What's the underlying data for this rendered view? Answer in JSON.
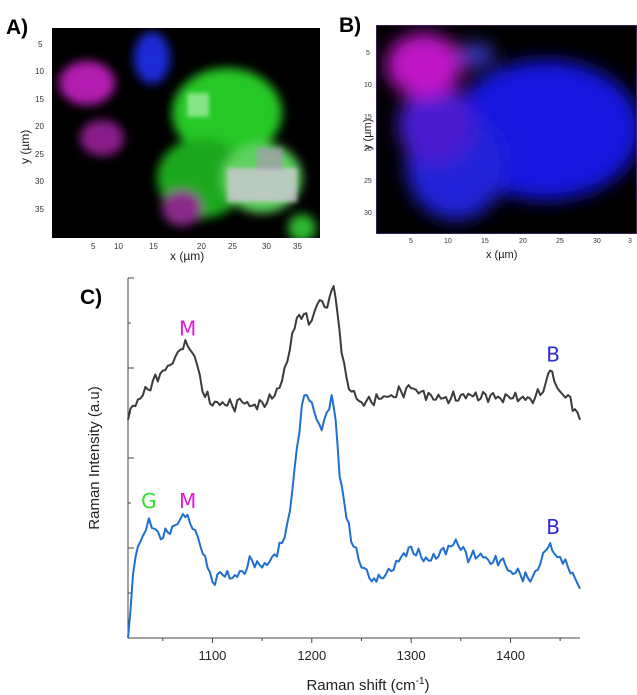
{
  "panels": {
    "a": {
      "label": "A)",
      "xlabel": "x (µm)",
      "ylabel": "y (µm)",
      "xticks": [
        "5",
        "10",
        "15",
        "20",
        "25",
        "30",
        "35"
      ],
      "yticks": [
        "5",
        "10",
        "15",
        "20",
        "25",
        "30",
        "35"
      ]
    },
    "b": {
      "label": "B)",
      "xlabel": "x (µm)",
      "ylabel": "y (µm)",
      "xticks": [
        "5",
        "10",
        "15",
        "20",
        "25",
        "30",
        "3"
      ],
      "yticks": [
        "5",
        "10",
        "15",
        "20",
        "25",
        "30"
      ]
    },
    "c": {
      "label": "C)"
    }
  },
  "chart_data": {
    "type": "line",
    "xlabel": "Raman shift (cm",
    "xlabel_sup": "-1",
    "xlabel_suffix": ")",
    "ylabel": "Raman Intensity (a.u)",
    "xlim": [
      1015,
      1470
    ],
    "xticks": [
      1100,
      1200,
      1300,
      1400
    ],
    "ylim": [
      0,
      10
    ],
    "grid": false,
    "series": [
      {
        "color": "#3b3b3b",
        "x": [
          1015,
          1020,
          1030,
          1040,
          1050,
          1060,
          1068,
          1075,
          1082,
          1090,
          1100,
          1110,
          1120,
          1130,
          1140,
          1150,
          1160,
          1170,
          1178,
          1185,
          1192,
          1197,
          1203,
          1208,
          1213,
          1218,
          1222,
          1226,
          1230,
          1235,
          1240,
          1245,
          1250,
          1260,
          1270,
          1280,
          1290,
          1300,
          1310,
          1320,
          1330,
          1340,
          1350,
          1360,
          1370,
          1380,
          1390,
          1400,
          1410,
          1420,
          1430,
          1436,
          1440,
          1444,
          1450,
          1458,
          1465,
          1470
        ],
        "y": [
          6.2,
          6.6,
          6.9,
          7.3,
          7.6,
          7.8,
          8.2,
          8.3,
          8.0,
          7.0,
          6.6,
          6.7,
          6.6,
          6.7,
          6.6,
          6.7,
          6.8,
          7.3,
          8.2,
          9.1,
          9.2,
          8.9,
          9.3,
          9.6,
          9.4,
          9.7,
          10.0,
          9.2,
          8.1,
          7.4,
          7.0,
          6.8,
          6.7,
          6.7,
          6.8,
          6.9,
          7.0,
          7.1,
          7.0,
          6.9,
          6.8,
          6.8,
          6.9,
          6.9,
          6.8,
          6.9,
          6.8,
          6.8,
          6.8,
          6.8,
          6.9,
          7.3,
          7.6,
          7.3,
          7.0,
          6.9,
          6.5,
          6.2
        ]
      },
      {
        "color": "#1f6fd1",
        "x": [
          1015,
          1020,
          1025,
          1030,
          1036,
          1042,
          1048,
          1055,
          1062,
          1068,
          1075,
          1080,
          1088,
          1095,
          1100,
          1110,
          1120,
          1130,
          1140,
          1150,
          1160,
          1170,
          1178,
          1185,
          1190,
          1195,
          1200,
          1205,
          1210,
          1215,
          1220,
          1224,
          1228,
          1235,
          1242,
          1250,
          1258,
          1265,
          1272,
          1280,
          1290,
          1300,
          1310,
          1320,
          1330,
          1340,
          1345,
          1350,
          1360,
          1370,
          1380,
          1390,
          1400,
          1410,
          1420,
          1430,
          1436,
          1440,
          1444,
          1450,
          1458,
          1465,
          1470
        ],
        "y": [
          0.0,
          1.8,
          2.6,
          2.9,
          3.4,
          3.1,
          2.8,
          3.0,
          3.2,
          3.4,
          3.5,
          3.1,
          2.6,
          2.0,
          1.6,
          1.8,
          1.7,
          1.9,
          2.2,
          2.0,
          2.3,
          2.7,
          3.6,
          5.4,
          6.6,
          6.9,
          6.7,
          6.2,
          5.9,
          6.4,
          6.9,
          6.2,
          4.6,
          3.4,
          2.6,
          2.0,
          1.7,
          1.6,
          1.7,
          1.9,
          2.3,
          2.6,
          2.3,
          2.2,
          2.5,
          2.6,
          2.8,
          2.5,
          2.3,
          2.4,
          2.1,
          2.2,
          1.9,
          1.8,
          1.6,
          2.1,
          2.5,
          2.7,
          2.4,
          2.3,
          2.0,
          1.7,
          1.4
        ]
      }
    ],
    "annotations": [
      {
        "text": "M",
        "color": "#e11bd6",
        "x": 1075,
        "y": 8.6
      },
      {
        "text": "B",
        "color": "#2a2ad6",
        "x": 1443,
        "y": 7.85
      },
      {
        "text": "G",
        "color": "#2ee02e",
        "x": 1036,
        "y": 3.7
      },
      {
        "text": "M",
        "color": "#e11bd6",
        "x": 1075,
        "y": 3.7
      },
      {
        "text": "B",
        "color": "#2a2ad6",
        "x": 1443,
        "y": 2.95
      }
    ]
  }
}
